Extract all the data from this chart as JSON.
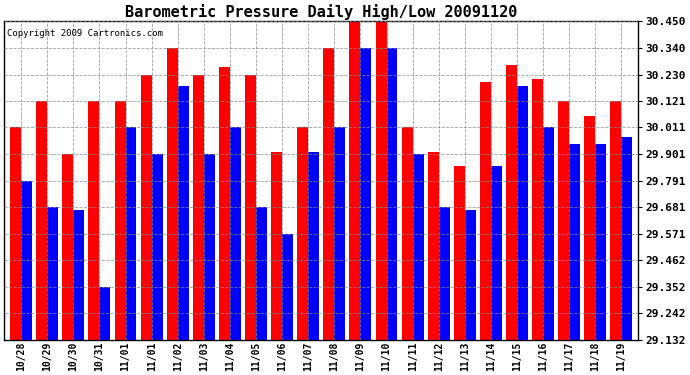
{
  "title": "Barometric Pressure Daily High/Low 20091120",
  "copyright": "Copyright 2009 Cartronics.com",
  "labels": [
    "10/28",
    "10/29",
    "10/30",
    "10/31",
    "11/01",
    "11/01",
    "11/02",
    "11/03",
    "11/04",
    "11/05",
    "11/06",
    "11/07",
    "11/08",
    "11/09",
    "11/10",
    "11/11",
    "11/12",
    "11/13",
    "11/14",
    "11/15",
    "11/16",
    "11/17",
    "11/18",
    "11/19"
  ],
  "highs": [
    30.011,
    30.121,
    29.901,
    30.121,
    30.121,
    30.23,
    30.34,
    30.23,
    30.26,
    30.23,
    29.911,
    30.011,
    30.34,
    30.45,
    30.45,
    30.011,
    29.911,
    29.851,
    30.2,
    30.27,
    30.21,
    30.121,
    30.06,
    30.121
  ],
  "lows": [
    29.791,
    29.681,
    29.671,
    29.352,
    30.011,
    29.901,
    30.181,
    29.901,
    30.011,
    29.681,
    29.571,
    29.911,
    30.011,
    30.34,
    30.34,
    29.901,
    29.681,
    29.671,
    29.851,
    30.181,
    30.011,
    29.941,
    29.941,
    29.971
  ],
  "ylim_min": 29.132,
  "ylim_max": 30.45,
  "ytick_values": [
    29.132,
    29.242,
    29.352,
    29.462,
    29.571,
    29.681,
    29.791,
    29.901,
    30.011,
    30.121,
    30.23,
    30.34,
    30.45
  ],
  "ytick_labels": [
    "29.132",
    "29.242",
    "29.352",
    "29.462",
    "29.571",
    "29.681",
    "29.791",
    "29.901",
    "30.011",
    "30.121",
    "30.230",
    "30.340",
    "30.450"
  ],
  "bar_width": 0.42,
  "high_color": "#ff0000",
  "low_color": "#0000ff",
  "bg_color": "#ffffff",
  "grid_color": "#888888",
  "title_fontsize": 11,
  "copyright_fontsize": 6.5,
  "tick_fontsize": 7,
  "ytick_fontsize": 8
}
